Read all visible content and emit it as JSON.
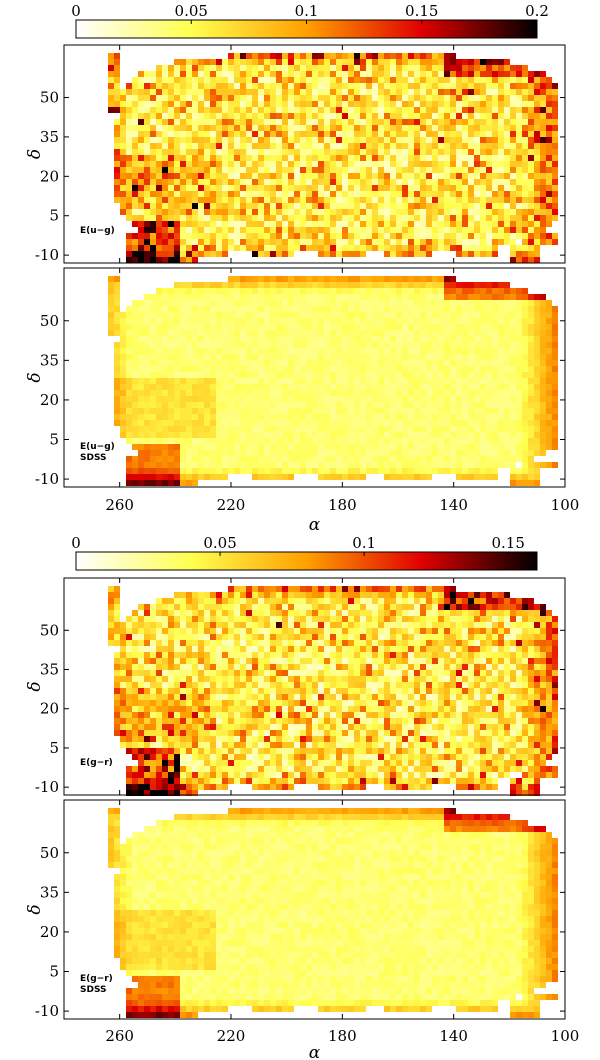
{
  "chart_data": [
    {
      "type": "heatmap",
      "colorbar": {
        "ticks": [
          "0",
          "0.05",
          "0.1",
          "0.15",
          "0.2"
        ],
        "range": [
          0,
          0.2
        ]
      },
      "panels": [
        {
          "label": [
            "E(u−g)"
          ],
          "texture": "fine"
        },
        {
          "label": [
            "E(u−g)",
            "SDSS"
          ],
          "texture": "smooth"
        }
      ],
      "xlabel": "α",
      "ylabel": "δ",
      "xticks": [
        "260",
        "220",
        "180",
        "140",
        "100"
      ],
      "yticks": [
        "-10",
        "5",
        "20",
        "35",
        "50"
      ],
      "xlim": [
        280,
        100
      ],
      "ylim": [
        -13,
        70
      ]
    },
    {
      "type": "heatmap",
      "colorbar": {
        "ticks": [
          "0",
          "0.05",
          "0.1",
          "0.15"
        ],
        "range": [
          0,
          0.16
        ]
      },
      "panels": [
        {
          "label": [
            "E(g−r)"
          ],
          "texture": "fine"
        },
        {
          "label": [
            "E(g−r)",
            "SDSS"
          ],
          "texture": "smooth"
        }
      ],
      "xlabel": "α",
      "ylabel": "δ",
      "xticks": [
        "260",
        "220",
        "180",
        "140",
        "100"
      ],
      "yticks": [
        "-10",
        "5",
        "20",
        "35",
        "50"
      ],
      "xlim": [
        280,
        100
      ],
      "ylim": [
        -13,
        70
      ]
    }
  ]
}
